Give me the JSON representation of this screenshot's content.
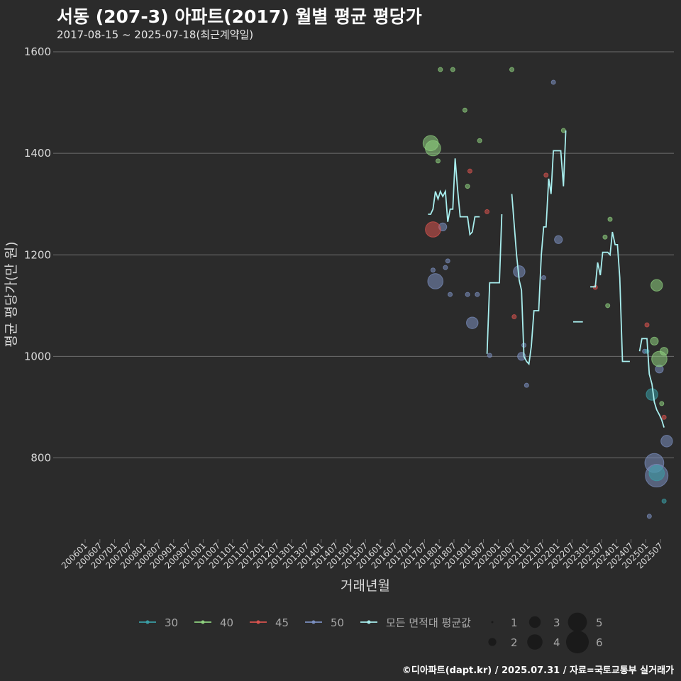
{
  "title": "서동 (207-3) 아파트(2017) 월별 평균 평당가",
  "subtitle": "2017-08-15 ~ 2025-07-18(최근계약일)",
  "caption": "©디아파트(dapt.kr) / 2025.07.31 / 자료=국토교통부 실거래가",
  "colors": {
    "background": "#2b2b2b",
    "grid": "#6e6e6e",
    "s30": "#3a9ea5",
    "s40": "#8fd17f",
    "s45": "#d9534f",
    "s50": "#7b8fbf",
    "avg": "#a8eeee"
  },
  "chart_data": {
    "type": "line",
    "title": "서동 (207-3) 아파트(2017) 월별 평균 평당가",
    "xlabel": "거래년월",
    "ylabel": "평균 평당가(만 원)",
    "ylim": [
      640,
      1600
    ],
    "yticks": [
      800,
      1000,
      1200,
      1400,
      1600
    ],
    "xlim": [
      2006.0,
      2025.833
    ],
    "xticks": [
      "200601",
      "200607",
      "200701",
      "200707",
      "200801",
      "200807",
      "200901",
      "200907",
      "201001",
      "201007",
      "201101",
      "201107",
      "201201",
      "201207",
      "201301",
      "201307",
      "201401",
      "201407",
      "201501",
      "201507",
      "201601",
      "201607",
      "201701",
      "201707",
      "201801",
      "201807",
      "201901",
      "201907",
      "202001",
      "202007",
      "202101",
      "202107",
      "202201",
      "202207",
      "202301",
      "202307",
      "202401",
      "202407",
      "202501",
      "202507"
    ],
    "grid": "horizontal",
    "legend_position": "bottom",
    "legend_series": [
      {
        "key": "s30",
        "label": "30"
      },
      {
        "key": "s40",
        "label": "40"
      },
      {
        "key": "s45",
        "label": "45"
      },
      {
        "key": "s50",
        "label": "50"
      },
      {
        "key": "avg",
        "label": "모든 면적대 평균값"
      }
    ],
    "legend_sizes": [
      1,
      2,
      3,
      4,
      5,
      6
    ],
    "average_line": [
      [
        [
          2017.62,
          1280
        ],
        [
          2017.71,
          1280
        ],
        [
          2017.79,
          1290
        ],
        [
          2017.87,
          1325
        ],
        [
          2017.96,
          1310
        ],
        [
          2018.04,
          1325
        ],
        [
          2018.12,
          1315
        ],
        [
          2018.21,
          1325
        ],
        [
          2018.29,
          1265
        ],
        [
          2018.37,
          1290
        ],
        [
          2018.46,
          1290
        ],
        [
          2018.54,
          1390
        ],
        [
          2018.62,
          1330
        ],
        [
          2018.71,
          1275
        ],
        [
          2018.79,
          1275
        ],
        [
          2018.87,
          1275
        ],
        [
          2018.96,
          1275
        ],
        [
          2019.04,
          1240
        ],
        [
          2019.12,
          1245
        ],
        [
          2019.21,
          1275
        ],
        [
          2019.29,
          1275
        ],
        [
          2019.37,
          1275
        ]
      ],
      [
        [
          2019.62,
          1005
        ],
        [
          2019.71,
          1145
        ],
        [
          2019.79,
          1145
        ],
        [
          2019.87,
          1145
        ],
        [
          2019.96,
          1145
        ],
        [
          2020.04,
          1145
        ],
        [
          2020.12,
          1280
        ]
      ],
      [
        [
          2020.46,
          1320
        ],
        [
          2020.62,
          1200
        ],
        [
          2020.71,
          1150
        ],
        [
          2020.79,
          1130
        ],
        [
          2020.87,
          1000
        ],
        [
          2020.96,
          990
        ],
        [
          2021.04,
          985
        ],
        [
          2021.12,
          1020
        ],
        [
          2021.21,
          1090
        ],
        [
          2021.29,
          1090
        ],
        [
          2021.37,
          1090
        ],
        [
          2021.46,
          1200
        ],
        [
          2021.54,
          1255
        ],
        [
          2021.62,
          1255
        ],
        [
          2021.71,
          1350
        ],
        [
          2021.79,
          1320
        ],
        [
          2021.87,
          1405
        ],
        [
          2021.96,
          1405
        ],
        [
          2022.04,
          1405
        ],
        [
          2022.12,
          1405
        ],
        [
          2022.21,
          1335
        ],
        [
          2022.29,
          1445
        ]
      ],
      [
        [
          2022.54,
          1068
        ],
        [
          2022.62,
          1068
        ],
        [
          2022.71,
          1068
        ],
        [
          2022.79,
          1068
        ],
        [
          2022.87,
          1068
        ]
      ],
      [
        [
          2023.12,
          1137
        ],
        [
          2023.21,
          1137
        ],
        [
          2023.29,
          1137
        ],
        [
          2023.37,
          1185
        ],
        [
          2023.46,
          1160
        ],
        [
          2023.54,
          1205
        ],
        [
          2023.62,
          1205
        ],
        [
          2023.71,
          1205
        ],
        [
          2023.79,
          1200
        ],
        [
          2023.87,
          1245
        ],
        [
          2023.96,
          1220
        ],
        [
          2024.04,
          1220
        ],
        [
          2024.12,
          1155
        ],
        [
          2024.21,
          990
        ],
        [
          2024.29,
          990
        ],
        [
          2024.37,
          990
        ],
        [
          2024.46,
          990
        ]
      ],
      [
        [
          2024.79,
          1010
        ],
        [
          2024.87,
          1035
        ],
        [
          2024.96,
          1035
        ],
        [
          2025.04,
          1035
        ],
        [
          2025.12,
          965
        ],
        [
          2025.21,
          945
        ],
        [
          2025.29,
          910
        ],
        [
          2025.37,
          895
        ],
        [
          2025.46,
          885
        ],
        [
          2025.54,
          875
        ],
        [
          2025.62,
          860
        ]
      ]
    ],
    "points": {
      "s30": [
        [
          2025.21,
          925,
          3
        ],
        [
          2025.37,
          770,
          4
        ],
        [
          2025.04,
          1010,
          1
        ],
        [
          2025.62,
          715,
          1
        ]
      ],
      "s40": [
        [
          2017.79,
          1410,
          4
        ],
        [
          2017.71,
          1420,
          4
        ],
        [
          2017.96,
          1385,
          1
        ],
        [
          2018.04,
          1565,
          1
        ],
        [
          2018.46,
          1565,
          1
        ],
        [
          2018.87,
          1485,
          1
        ],
        [
          2018.96,
          1335,
          1
        ],
        [
          2019.37,
          1425,
          1
        ],
        [
          2020.46,
          1565,
          1
        ],
        [
          2022.21,
          1445,
          1
        ],
        [
          2023.62,
          1235,
          1
        ],
        [
          2023.71,
          1100,
          1
        ],
        [
          2023.79,
          1270,
          1
        ],
        [
          2025.29,
          1030,
          2
        ],
        [
          2025.37,
          1140,
          3
        ],
        [
          2025.46,
          995,
          4
        ],
        [
          2025.54,
          907,
          1
        ],
        [
          2025.62,
          1010,
          2
        ]
      ],
      "s45": [
        [
          2017.79,
          1250,
          4
        ],
        [
          2019.04,
          1365,
          1
        ],
        [
          2019.62,
          1285,
          1
        ],
        [
          2020.54,
          1078,
          1
        ],
        [
          2021.62,
          1357,
          1
        ],
        [
          2023.29,
          1136,
          1
        ],
        [
          2025.04,
          1062,
          1
        ],
        [
          2025.62,
          880,
          1
        ]
      ],
      "s50": [
        [
          2017.87,
          1148,
          4
        ],
        [
          2018.12,
          1255,
          2
        ],
        [
          2017.79,
          1170,
          1
        ],
        [
          2018.21,
          1175,
          1
        ],
        [
          2018.29,
          1188,
          1
        ],
        [
          2018.37,
          1122,
          1
        ],
        [
          2018.96,
          1122,
          1
        ],
        [
          2019.12,
          1066,
          3
        ],
        [
          2019.29,
          1122,
          1
        ],
        [
          2019.71,
          1002,
          1
        ],
        [
          2020.71,
          1167,
          3
        ],
        [
          2020.79,
          1000,
          2
        ],
        [
          2020.87,
          1022,
          1
        ],
        [
          2020.96,
          943,
          1
        ],
        [
          2021.54,
          1155,
          1
        ],
        [
          2021.87,
          1540,
          1
        ],
        [
          2022.04,
          1230,
          2
        ],
        [
          2024.96,
          1010,
          1
        ],
        [
          2025.12,
          685,
          1
        ],
        [
          2025.29,
          790,
          5
        ],
        [
          2025.37,
          765,
          6
        ],
        [
          2025.46,
          975,
          2
        ],
        [
          2025.71,
          833,
          3
        ]
      ]
    }
  }
}
